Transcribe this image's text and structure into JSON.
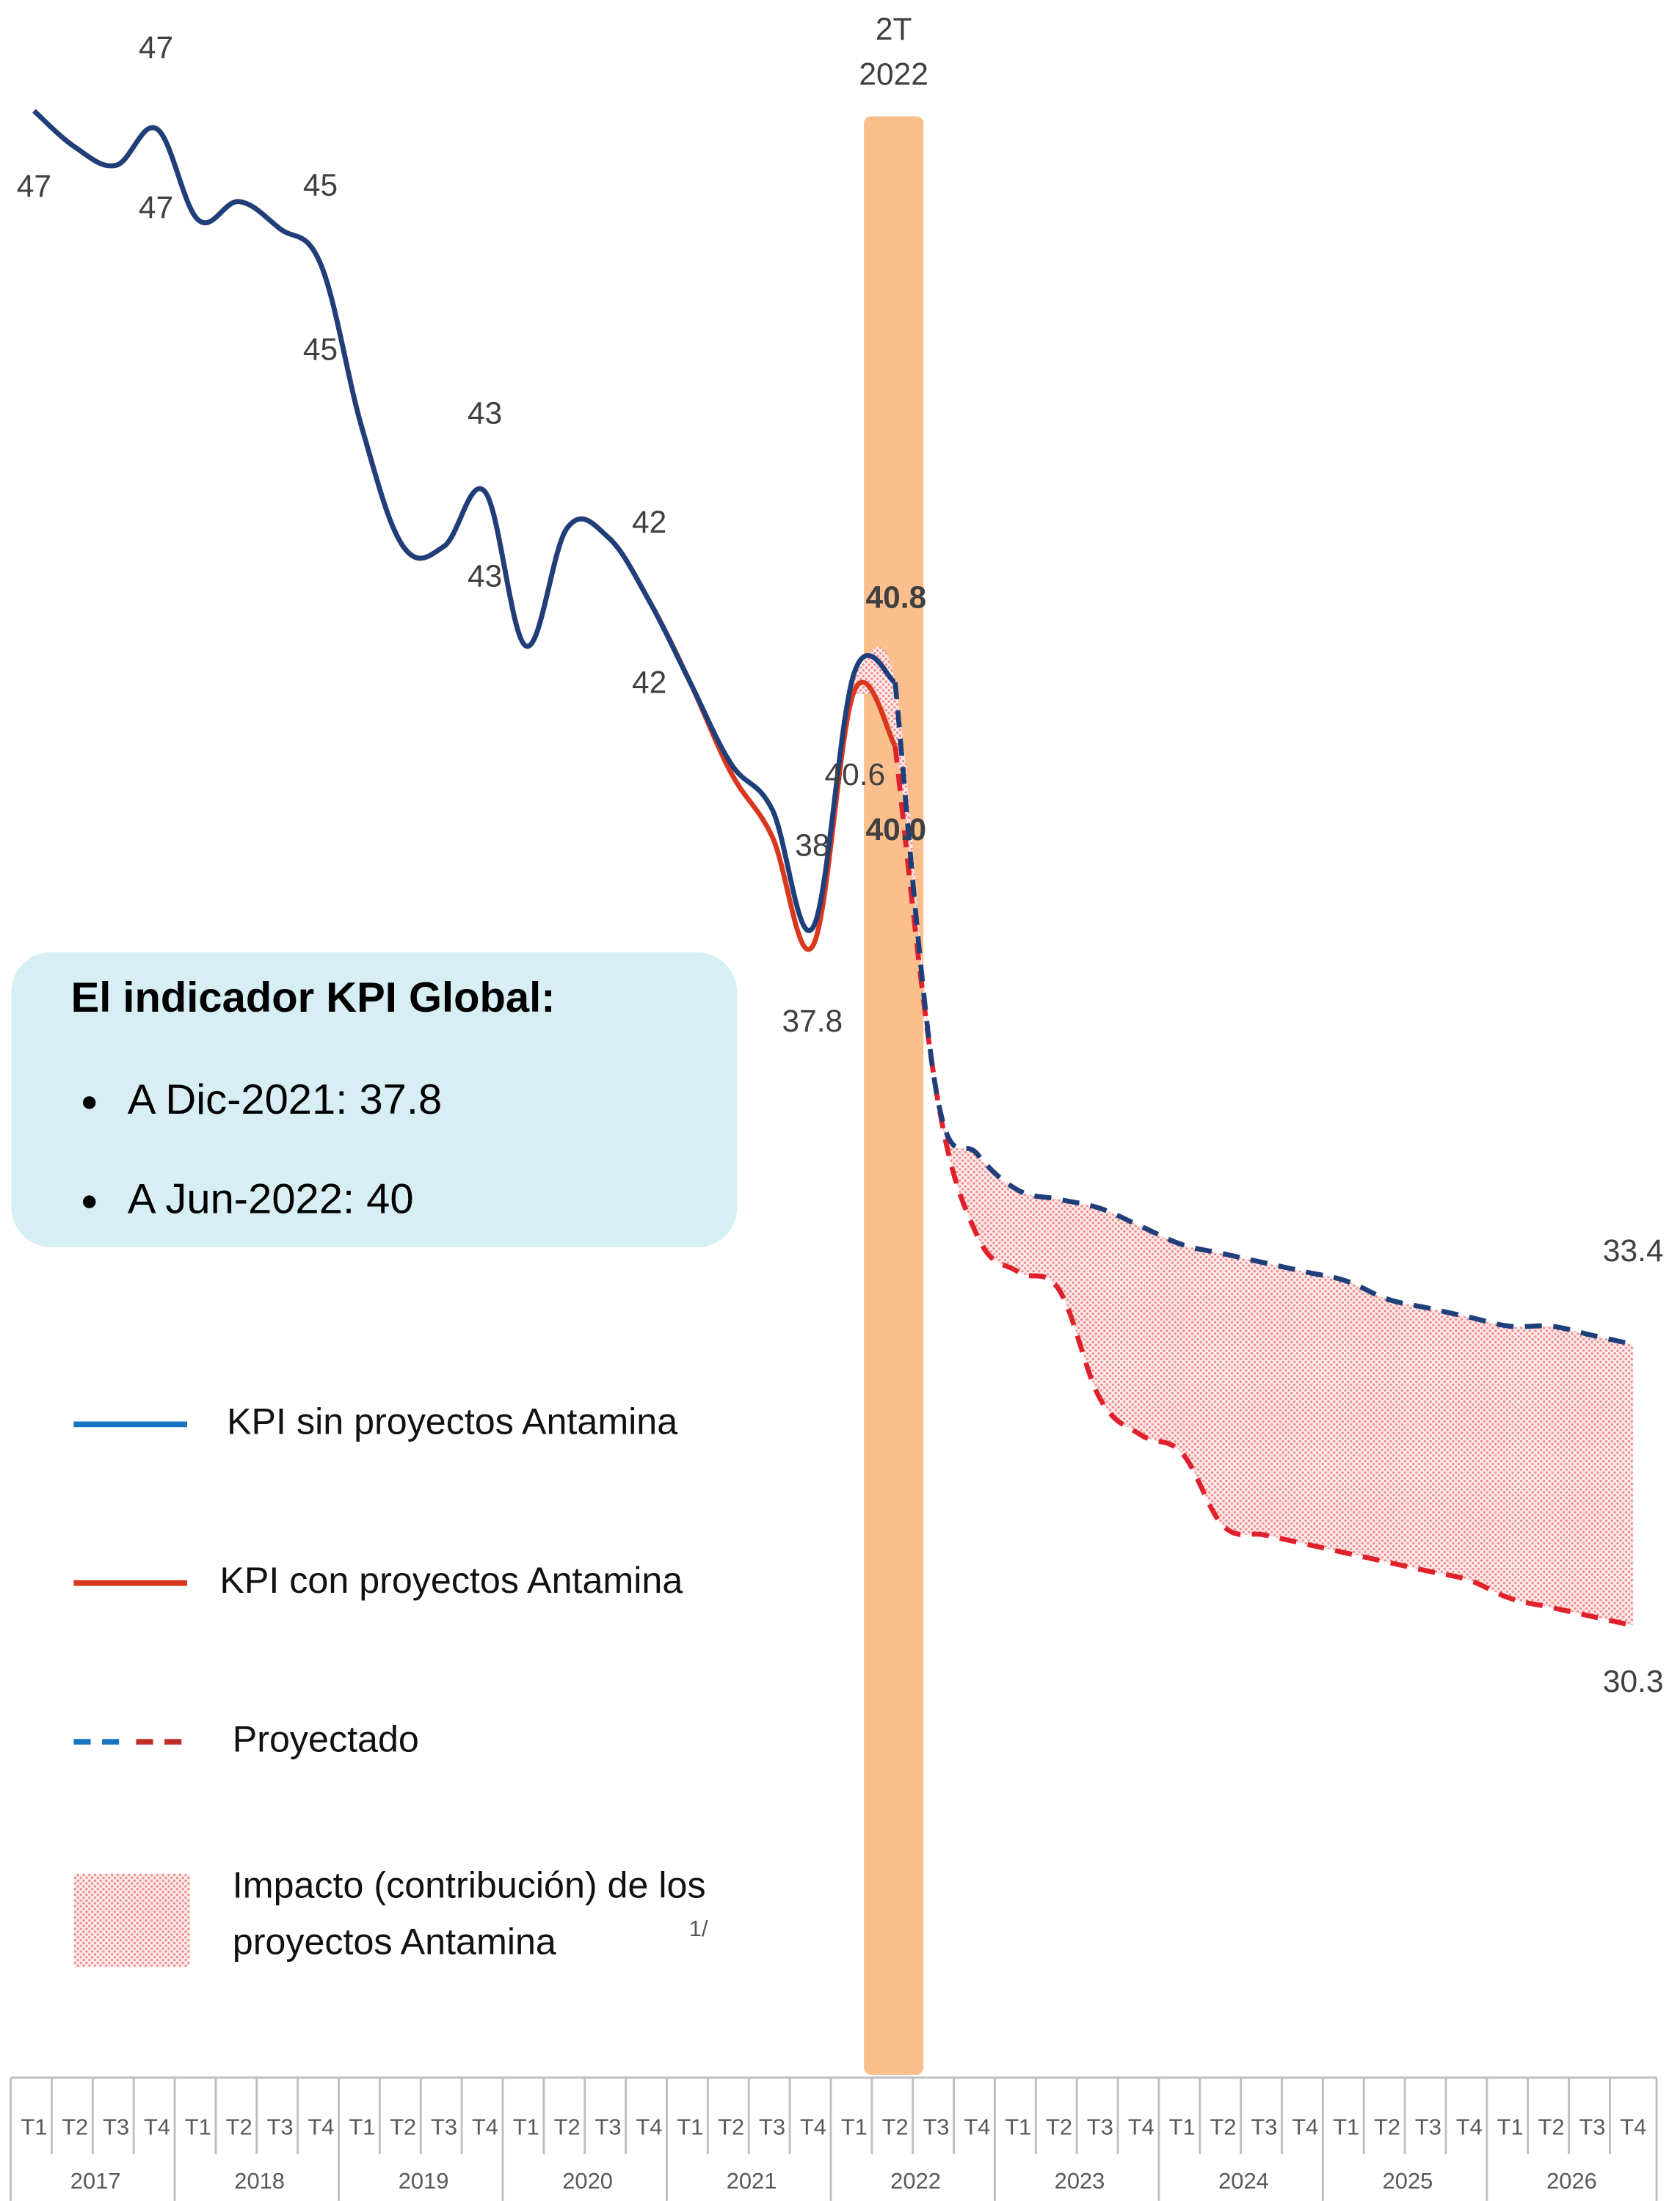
{
  "chart_data": {
    "type": "line",
    "categories": [
      "T1",
      "T2",
      "T3",
      "T4",
      "T1",
      "T2",
      "T3",
      "T4",
      "T1",
      "T2",
      "T3",
      "T4",
      "T1",
      "T2",
      "T3",
      "T4",
      "T1",
      "T2",
      "T3",
      "T4",
      "T1",
      "T2",
      "T3",
      "T4",
      "T1",
      "T2",
      "T3",
      "T4",
      "T1",
      "T2",
      "T3",
      "T4",
      "T1",
      "T2",
      "T3",
      "T4",
      "T1",
      "T2",
      "T3",
      "T4"
    ],
    "years": [
      "2017",
      "2018",
      "2019",
      "2020",
      "2021",
      "2022",
      "2023",
      "2024",
      "2025",
      "2026"
    ],
    "highlight": {
      "lines": [
        "2T",
        "2022"
      ],
      "category": 21,
      "color": "#fbbf8d"
    },
    "series": [
      {
        "name": "KPI sin proyectos Antamina",
        "color": "#1f3f7a",
        "legend_color": "#1a74c4",
        "values": [
          47.0,
          46.6,
          46.4,
          46.8,
          45.8,
          46.0,
          45.7,
          45.3,
          43.5,
          42.2,
          42.2,
          42.8,
          41.1,
          42.4,
          42.3,
          41.6,
          40.7,
          39.8,
          39.3,
          38.0,
          40.8,
          40.7,
          36.2,
          35.5,
          35.1,
          35.0,
          34.9,
          34.7,
          34.5,
          34.4,
          34.3,
          34.2,
          34.1,
          33.9,
          33.8,
          33.7,
          33.6,
          33.6,
          33.5,
          33.4
        ],
        "value_labels": [
          "47",
          null,
          null,
          "47",
          null,
          null,
          null,
          "45",
          null,
          null,
          null,
          "43",
          null,
          null,
          null,
          "42",
          null,
          null,
          null,
          "38",
          "40.8",
          null,
          null,
          null,
          null,
          null,
          null,
          null,
          null,
          null,
          null,
          null,
          null,
          null,
          null,
          null,
          null,
          null,
          null,
          "33.4"
        ]
      },
      {
        "name": "KPI con proyectos Antamina",
        "color": "#d9381e",
        "legend_color": "#d9381e",
        "values": [
          47.0,
          46.6,
          46.4,
          46.8,
          45.8,
          46.0,
          45.7,
          45.3,
          43.5,
          42.2,
          42.2,
          42.8,
          41.1,
          42.4,
          42.3,
          41.6,
          40.7,
          39.7,
          39.0,
          37.8,
          40.6,
          40.0,
          36.2,
          34.6,
          34.2,
          34.0,
          32.8,
          32.4,
          32.2,
          31.4,
          31.3,
          31.2,
          31.1,
          31.0,
          30.9,
          30.8,
          30.6,
          30.5,
          30.4,
          30.3
        ],
        "value_labels": [
          null,
          null,
          null,
          "47",
          null,
          null,
          null,
          "45",
          null,
          null,
          null,
          "43",
          null,
          null,
          null,
          "42",
          null,
          null,
          null,
          "37.8",
          "40.6",
          "40.0",
          null,
          null,
          null,
          null,
          null,
          null,
          null,
          null,
          null,
          null,
          null,
          null,
          null,
          null,
          null,
          null,
          null,
          "30.3"
        ]
      }
    ],
    "projected_label": "Proyectado",
    "impact_label": [
      "Impacto (contribución) de los",
      "proyectos Antamina"
    ],
    "impact_note": "1/",
    "impact_color": "#f4a6a6",
    "info_box": {
      "title": "El indicador KPI Global:",
      "items": [
        "A Dic-2021: 37.8",
        "A Jun-2022: 40"
      ]
    }
  }
}
